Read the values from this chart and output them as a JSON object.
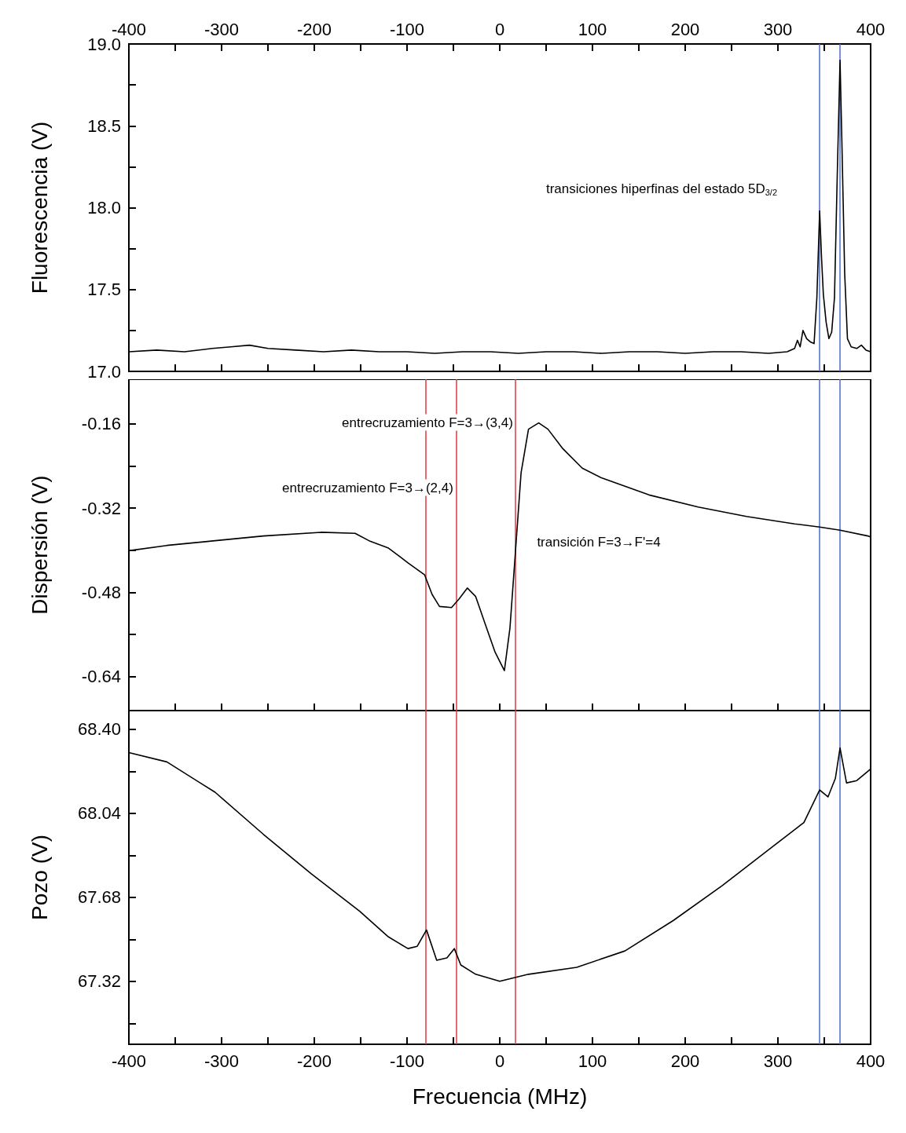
{
  "chart_data": [
    {
      "type": "line",
      "ylabel": "Fluorescencia (V)",
      "xlim": [
        -400,
        400
      ],
      "x2lim": [
        -400,
        400
      ],
      "xticks": [
        -400,
        {
          "value": -350,
          "label": null
        },
        -300,
        {
          "value": -250,
          "label": null
        },
        -200,
        {
          "value": -150,
          "label": null
        },
        -100,
        {
          "value": -50,
          "label": null
        },
        0,
        {
          "value": 50,
          "label": null
        },
        100,
        {
          "value": 150,
          "label": null
        },
        200,
        {
          "value": 250,
          "label": null
        },
        300,
        {
          "value": 350,
          "label": null
        },
        400
      ],
      "x2ticks": [
        -400,
        {
          "value": -350,
          "label": null
        },
        -300,
        {
          "value": -250,
          "label": null
        },
        -200,
        {
          "value": -150,
          "label": null
        },
        -100,
        {
          "value": -50,
          "label": null
        },
        0,
        {
          "value": 50,
          "label": null
        },
        100,
        {
          "value": 150,
          "label": null
        },
        200,
        {
          "value": 250,
          "label": null
        },
        300,
        {
          "value": 350,
          "label": null
        },
        400
      ],
      "ylim": [
        17.0,
        19.0
      ],
      "yticks": [
        {
          "value": 17,
          "label": "17.0"
        },
        {
          "value": 17.25,
          "label": null
        },
        17.5,
        {
          "value": 17.75,
          "label": null
        },
        {
          "value": 18,
          "label": "18.0"
        },
        {
          "value": 18.25,
          "label": null
        },
        18.5,
        {
          "value": 18.75,
          "label": null
        },
        {
          "value": 19,
          "label": "19.0"
        }
      ],
      "tick_labels": "y",
      "marker": "none",
      "line_style": "solid",
      "x": [
        -400,
        -370,
        -340,
        -310,
        -290,
        -270,
        -250,
        -220,
        -190,
        -160,
        -130,
        -100,
        -70,
        -40,
        -10,
        20,
        50,
        80,
        110,
        140,
        170,
        200,
        230,
        260,
        290,
        310,
        318,
        321,
        324,
        327,
        331,
        335,
        339,
        342,
        345,
        347,
        349,
        352,
        355,
        358,
        361,
        364,
        367,
        369,
        372,
        375,
        379,
        385,
        390,
        395,
        400
      ],
      "values": [
        17.12,
        17.13,
        17.12,
        17.14,
        17.15,
        17.16,
        17.14,
        17.13,
        17.12,
        17.13,
        17.12,
        17.12,
        17.11,
        17.12,
        17.12,
        17.11,
        17.12,
        17.12,
        17.11,
        17.12,
        17.12,
        17.11,
        17.12,
        17.12,
        17.11,
        17.12,
        17.14,
        17.19,
        17.15,
        17.25,
        17.2,
        17.18,
        17.17,
        17.45,
        17.98,
        17.7,
        17.47,
        17.3,
        17.2,
        17.24,
        17.45,
        18.2,
        18.9,
        18.4,
        17.6,
        17.2,
        17.15,
        17.14,
        17.16,
        17.13,
        17.12
      ],
      "color": "#000000",
      "ref_lines": [
        {
          "axis": "x",
          "value": 345,
          "color": "#4a6fc7"
        },
        {
          "axis": "x",
          "value": 367,
          "color": "#4a6fc7"
        }
      ],
      "annotations": [
        "transiciones hiperfinas del estado 5D$_{3/2}$"
      ]
    },
    {
      "type": "line",
      "ylabel": "Dispersión (V)",
      "xlim": [
        -400,
        400
      ],
      "xticks": [
        -400,
        {
          "value": -350,
          "label": null
        },
        -300,
        {
          "value": -250,
          "label": null
        },
        -200,
        {
          "value": -150,
          "label": null
        },
        -100,
        {
          "value": -50,
          "label": null
        },
        0,
        {
          "value": 50,
          "label": null
        },
        100,
        {
          "value": 150,
          "label": null
        },
        200,
        {
          "value": 250,
          "label": null
        },
        300,
        {
          "value": 350,
          "label": null
        },
        400
      ],
      "ylim": [
        -0.705,
        -0.075
      ],
      "yticks": [
        -0.64,
        {
          "value": -0.56,
          "label": null
        },
        -0.48,
        {
          "value": -0.4,
          "label": null
        },
        -0.32,
        {
          "value": -0.24,
          "label": null
        },
        -0.16
      ],
      "tick_labels": "y",
      "marker": "none",
      "line_style": "solid",
      "x": [
        -400,
        -359,
        -307,
        -255,
        -193,
        -156,
        -141,
        -120,
        -99,
        -81,
        -73,
        -65,
        -52,
        -44,
        -35,
        -26,
        -16,
        -5,
        5,
        11,
        17,
        23,
        31,
        42,
        52,
        68,
        89,
        109,
        161,
        214,
        266,
        318,
        345,
        367,
        397,
        400
      ],
      "values": [
        -0.401,
        -0.391,
        -0.382,
        -0.373,
        -0.366,
        -0.368,
        -0.382,
        -0.396,
        -0.424,
        -0.447,
        -0.484,
        -0.507,
        -0.509,
        -0.493,
        -0.472,
        -0.488,
        -0.539,
        -0.594,
        -0.629,
        -0.548,
        -0.401,
        -0.253,
        -0.17,
        -0.158,
        -0.17,
        -0.207,
        -0.244,
        -0.262,
        -0.295,
        -0.318,
        -0.336,
        -0.35,
        -0.356,
        -0.362,
        -0.373,
        -0.375
      ],
      "color": "#000000",
      "ref_lines": [
        {
          "axis": "x",
          "value": -80,
          "color": "#e0393e"
        },
        {
          "axis": "x",
          "value": -47,
          "color": "#e0393e"
        },
        {
          "axis": "x",
          "value": 17,
          "color": "#e0393e"
        },
        {
          "axis": "x",
          "value": 345,
          "color": "#4a6fc7"
        },
        {
          "axis": "x",
          "value": 367,
          "color": "#4a6fc7"
        }
      ],
      "annotations": [
        "entrecruzamiento F=3→(3,4)",
        "entrecruzamiento F=3→(2,4)",
        "transición F=3→F'=4"
      ]
    },
    {
      "type": "line",
      "ylabel": "Pozo (V)",
      "xlabel": "Frecuencia (MHz)",
      "xlim": [
        -400,
        400
      ],
      "xticks": [
        -400,
        {
          "value": -350,
          "label": null
        },
        -300,
        {
          "value": -250,
          "label": null
        },
        -200,
        {
          "value": -150,
          "label": null
        },
        -100,
        {
          "value": -50,
          "label": null
        },
        0,
        {
          "value": 50,
          "label": null
        },
        100,
        {
          "value": 150,
          "label": null
        },
        200,
        {
          "value": 250,
          "label": null
        },
        300,
        {
          "value": 350,
          "label": null
        },
        400
      ],
      "ylim": [
        67.05,
        68.48
      ],
      "yticks": [
        {
          "value": 67.14,
          "label": null
        },
        67.32,
        {
          "value": 67.5,
          "label": null
        },
        67.68,
        {
          "value": 67.86,
          "label": null
        },
        68.04,
        {
          "value": 68.22,
          "label": null
        },
        {
          "value": 68.4,
          "label": "68.40"
        }
      ],
      "marker": "none",
      "line_style": "solid",
      "x": [
        -400,
        -359,
        -307,
        -255,
        -203,
        -151,
        -120,
        -99,
        -89,
        -79,
        -68,
        -57,
        -49,
        -42,
        -26,
        0,
        31,
        83,
        135,
        187,
        240,
        292,
        328,
        345,
        354,
        362,
        367,
        374,
        385,
        397,
        400
      ],
      "values": [
        68.3,
        68.26,
        68.13,
        67.95,
        67.78,
        67.62,
        67.51,
        67.46,
        67.47,
        67.54,
        67.41,
        67.42,
        67.46,
        67.39,
        67.35,
        67.32,
        67.35,
        67.38,
        67.45,
        67.58,
        67.73,
        67.89,
        68.0,
        68.14,
        68.11,
        68.19,
        68.32,
        68.17,
        68.18,
        68.22,
        68.23
      ],
      "color": "#000000",
      "ref_lines": [
        {
          "axis": "x",
          "value": -80,
          "color": "#e0393e"
        },
        {
          "axis": "x",
          "value": -47,
          "color": "#e0393e"
        },
        {
          "axis": "x",
          "value": 17,
          "color": "#e0393e"
        },
        {
          "axis": "x",
          "value": 345,
          "color": "#4a6fc7"
        },
        {
          "axis": "x",
          "value": 367,
          "color": "#4a6fc7"
        }
      ]
    }
  ]
}
